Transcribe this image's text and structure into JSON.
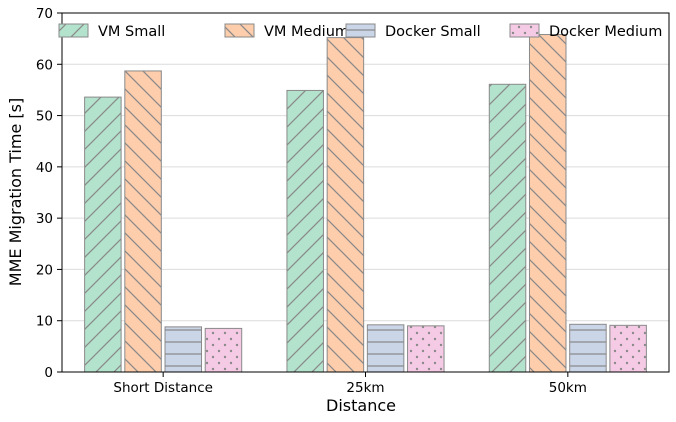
{
  "chart_data": {
    "type": "bar",
    "title": "",
    "xlabel": "Distance",
    "ylabel": "MME Migration Time [s]",
    "categories": [
      "Short Distance",
      "25km",
      "50km"
    ],
    "ylim": [
      0,
      70
    ],
    "yticks": [
      0,
      10,
      20,
      30,
      40,
      50,
      60,
      70
    ],
    "grid": "y",
    "legend_position": "top",
    "series": [
      {
        "name": "VM Small",
        "values": [
          53.6,
          54.9,
          56.1
        ],
        "color": "#b3e2cd",
        "hatch": "/"
      },
      {
        "name": "VM Medium",
        "values": [
          58.7,
          65.2,
          65.8
        ],
        "color": "#fdcdac",
        "hatch": "\\"
      },
      {
        "name": "Docker Small",
        "values": [
          8.8,
          9.2,
          9.3
        ],
        "color": "#cbd5e8",
        "hatch": "-"
      },
      {
        "name": "Docker Medium",
        "values": [
          8.5,
          9.0,
          9.1
        ],
        "color": "#f4cae4",
        "hatch": "."
      }
    ]
  }
}
